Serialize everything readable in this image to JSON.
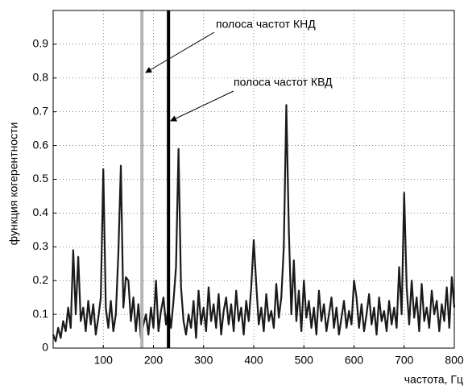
{
  "chart_data": {
    "type": "line",
    "y_label": "функция когерентности",
    "x_label": "частота, Гц",
    "annotations": [
      "полоса частот КНД",
      "полоса частот КВД"
    ],
    "markers": [
      {
        "x": 177,
        "color": "#b4b4b4"
      },
      {
        "x": 230,
        "color": "#000000"
      }
    ],
    "xlim": [
      0,
      800
    ],
    "ylim": [
      0,
      1
    ],
    "xticks": [
      100,
      200,
      300,
      400,
      500,
      600,
      700,
      800
    ],
    "yticks": [
      0,
      0.1,
      0.2,
      0.3,
      0.4,
      0.5,
      0.6,
      0.7,
      0.8,
      0.9
    ],
    "grid": true,
    "x": [
      0,
      5,
      10,
      15,
      20,
      25,
      30,
      35,
      40,
      45,
      50,
      55,
      60,
      65,
      70,
      75,
      80,
      85,
      90,
      95,
      100,
      105,
      110,
      115,
      120,
      125,
      130,
      135,
      140,
      145,
      150,
      155,
      160,
      165,
      170,
      175,
      180,
      185,
      190,
      195,
      200,
      205,
      210,
      215,
      220,
      225,
      230,
      235,
      240,
      245,
      250,
      255,
      260,
      265,
      270,
      275,
      280,
      285,
      290,
      295,
      300,
      305,
      310,
      315,
      320,
      325,
      330,
      335,
      340,
      345,
      350,
      355,
      360,
      365,
      370,
      375,
      380,
      385,
      390,
      395,
      400,
      405,
      410,
      415,
      420,
      425,
      430,
      435,
      440,
      445,
      450,
      455,
      460,
      465,
      470,
      475,
      480,
      485,
      490,
      495,
      500,
      505,
      510,
      515,
      520,
      525,
      530,
      535,
      540,
      545,
      550,
      555,
      560,
      565,
      570,
      575,
      580,
      585,
      590,
      595,
      600,
      605,
      610,
      615,
      620,
      625,
      630,
      635,
      640,
      645,
      650,
      655,
      660,
      665,
      670,
      675,
      680,
      685,
      690,
      695,
      700,
      705,
      710,
      715,
      720,
      725,
      730,
      735,
      740,
      745,
      750,
      755,
      760,
      765,
      770,
      775,
      780,
      785,
      790,
      795,
      800
    ],
    "series": [
      {
        "color": "#1a1a1a",
        "values": [
          0.04,
          0.02,
          0.06,
          0.03,
          0.08,
          0.05,
          0.12,
          0.06,
          0.29,
          0.1,
          0.27,
          0.08,
          0.12,
          0.05,
          0.14,
          0.07,
          0.13,
          0.04,
          0.09,
          0.15,
          0.53,
          0.12,
          0.06,
          0.14,
          0.05,
          0.1,
          0.28,
          0.54,
          0.12,
          0.21,
          0.2,
          0.08,
          0.15,
          0.05,
          0.13,
          0.03,
          0.07,
          0.1,
          0.04,
          0.12,
          0.06,
          0.2,
          0.05,
          0.11,
          0.15,
          0.07,
          0.12,
          0.06,
          0.14,
          0.24,
          0.59,
          0.18,
          0.08,
          0.04,
          0.1,
          0.06,
          0.14,
          0.03,
          0.17,
          0.07,
          0.12,
          0.05,
          0.18,
          0.08,
          0.13,
          0.06,
          0.16,
          0.04,
          0.11,
          0.15,
          0.07,
          0.13,
          0.05,
          0.17,
          0.08,
          0.12,
          0.04,
          0.14,
          0.08,
          0.18,
          0.32,
          0.19,
          0.07,
          0.12,
          0.05,
          0.16,
          0.08,
          0.11,
          0.06,
          0.19,
          0.09,
          0.15,
          0.3,
          0.72,
          0.35,
          0.1,
          0.26,
          0.08,
          0.17,
          0.05,
          0.2,
          0.09,
          0.14,
          0.06,
          0.12,
          0.04,
          0.17,
          0.08,
          0.13,
          0.05,
          0.1,
          0.15,
          0.06,
          0.12,
          0.04,
          0.09,
          0.14,
          0.06,
          0.11,
          0.07,
          0.2,
          0.15,
          0.06,
          0.13,
          0.05,
          0.1,
          0.16,
          0.07,
          0.12,
          0.04,
          0.15,
          0.08,
          0.11,
          0.05,
          0.14,
          0.07,
          0.12,
          0.06,
          0.24,
          0.1,
          0.46,
          0.18,
          0.07,
          0.2,
          0.09,
          0.15,
          0.05,
          0.19,
          0.08,
          0.12,
          0.06,
          0.17,
          0.1,
          0.14,
          0.05,
          0.13,
          0.08,
          0.18,
          0.06,
          0.21,
          0.12
        ]
      }
    ]
  }
}
